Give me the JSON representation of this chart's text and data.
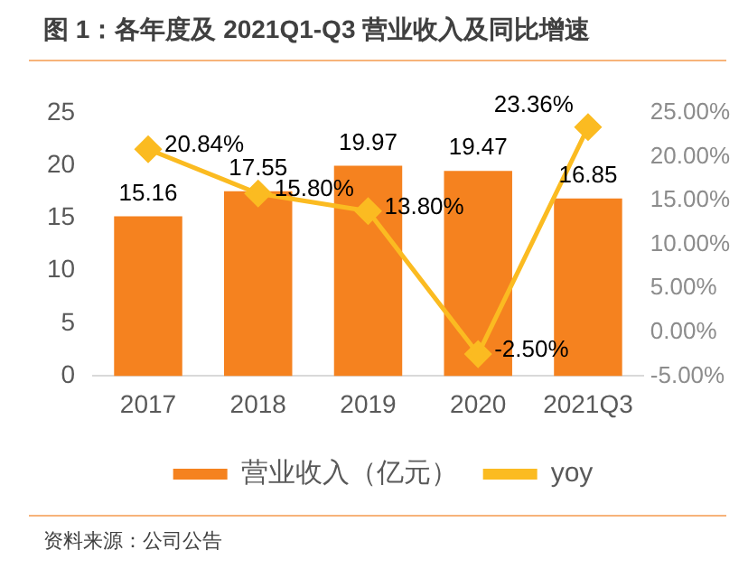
{
  "chart_data": {
    "type": "bar",
    "title": "图 1：各年度及 2021Q1-Q3 营业收入及同比增速",
    "categories": [
      "2017",
      "2018",
      "2019",
      "2020",
      "2021Q3"
    ],
    "series": [
      {
        "name": "营业收入（亿元）",
        "color": "#f5821f",
        "values": [
          15.16,
          17.55,
          19.97,
          19.47,
          16.85
        ],
        "value_labels": [
          "15.16",
          "17.55",
          "19.97",
          "19.47",
          "16.85"
        ]
      },
      {
        "name": "yoy",
        "type": "line",
        "axis": "y2",
        "color": "#fbbb21",
        "marker": "diamond",
        "values": [
          20.84,
          15.8,
          13.8,
          -2.5,
          23.36
        ],
        "value_labels": [
          "20.84%",
          "15.80%",
          "13.80%",
          "-2.50%",
          "23.36%"
        ]
      }
    ],
    "ylim": [
      0,
      25
    ],
    "yticks": [
      0,
      5,
      10,
      15,
      20,
      25
    ],
    "y2lim": [
      -5,
      25
    ],
    "y2ticks": [
      {
        "value": -5,
        "label": "-5.00%"
      },
      {
        "value": 0,
        "label": "0.00%"
      },
      {
        "value": 5,
        "label": "5.00%"
      },
      {
        "value": 10,
        "label": "10.00%"
      },
      {
        "value": 15,
        "label": "15.00%"
      },
      {
        "value": 20,
        "label": "20.00%"
      },
      {
        "value": 25,
        "label": "25.00%"
      }
    ],
    "legend": "bottom",
    "annotations": [
      "资料来源：公司公告"
    ]
  }
}
